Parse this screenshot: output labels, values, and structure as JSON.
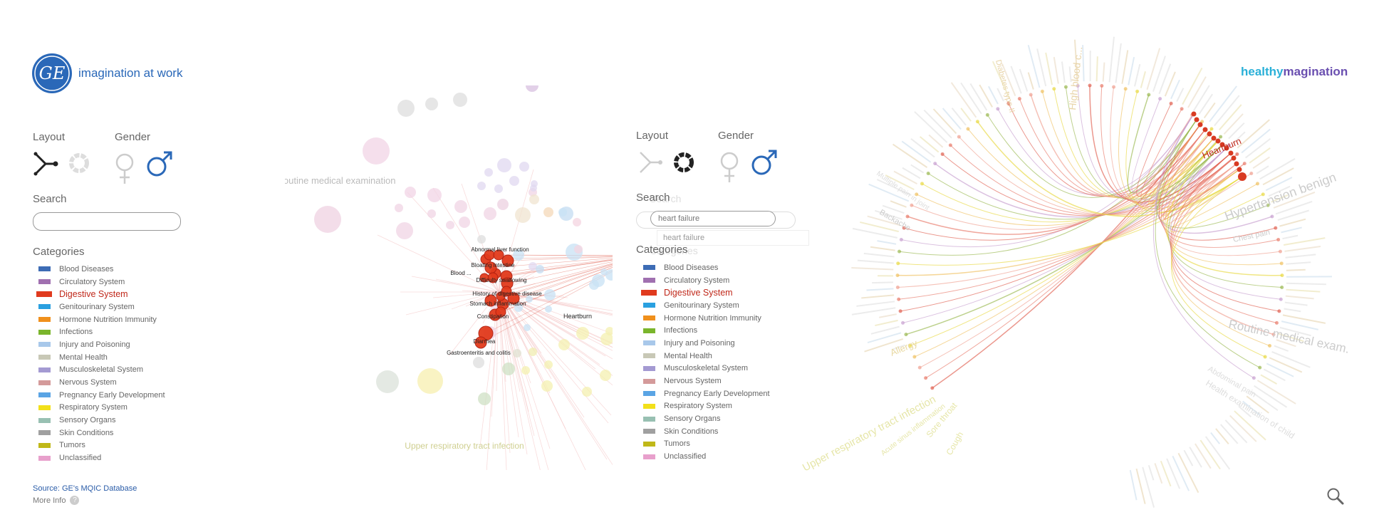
{
  "brand": {
    "tagline": "imagination at work",
    "logo_text": "GE",
    "right_logo_a": "healthy",
    "right_logo_b": "magination"
  },
  "left_panel": {
    "layout_label": "Layout",
    "gender_label": "Gender",
    "search_label": "Search",
    "categories_label": "Categories",
    "search_value": ""
  },
  "right_panel": {
    "layout_label": "Layout",
    "gender_label": "Gender",
    "search_label": "Search",
    "search_ghost": "Search",
    "categories_label": "Categories",
    "categories_ghost": "Categories",
    "search_value": "heart failure",
    "autocomplete": "heart failure"
  },
  "categories": [
    {
      "label": "Blood Diseases",
      "color": "#3d6cb5"
    },
    {
      "label": "Circulatory System",
      "color": "#a070b0"
    },
    {
      "label": "Digestive System",
      "color": "#e03a1e",
      "active": true
    },
    {
      "label": "Genitourinary System",
      "color": "#2aa0e0"
    },
    {
      "label": "Hormone Nutrition Immunity",
      "color": "#f0901c"
    },
    {
      "label": "Infections",
      "color": "#7ab52c"
    },
    {
      "label": "Injury and Poisoning",
      "color": "#a8c8ea"
    },
    {
      "label": "Mental Health",
      "color": "#c8c8b6"
    },
    {
      "label": "Musculoskeletal System",
      "color": "#a49ad2"
    },
    {
      "label": "Nervous System",
      "color": "#d49a9a"
    },
    {
      "label": "Pregnancy  Early Development",
      "color": "#5aa4e4"
    },
    {
      "label": "Respiratory System",
      "color": "#f2e01a"
    },
    {
      "label": "Sensory Organs",
      "color": "#98c0b2"
    },
    {
      "label": "Skin Conditions",
      "color": "#a0a0a0"
    },
    {
      "label": "Tumors",
      "color": "#c0b818"
    },
    {
      "label": "Unclassified",
      "color": "#e8a0cc"
    }
  ],
  "footer": {
    "source": "Source: GE's MQIC Database",
    "more_info": "More Info"
  },
  "network": {
    "labels": {
      "routine": "Routine medical examination",
      "urti": "Upper respiratory tract infection",
      "heartburn": "Heartburn",
      "liver": "Abnormal liver function",
      "intestine": "Bloating intestine",
      "blood": "Blood ...",
      "swallow": "Difficulty swallowing",
      "history": "History of digestive disease",
      "stomach": "Stomach inflammation",
      "constipation": "Constipation",
      "diarrhea": "Diarrhea",
      "gastro": "Gastroenteritis and colitis"
    }
  },
  "radial": {
    "labels": {
      "heartburn": "Heartburn",
      "hypertension": "Hypertension benign",
      "routine": "Routine medical exam.",
      "urti": "Upper respiratory tract infection",
      "high_blood": "High blood c...",
      "allergy": "Allergy",
      "health_exam": "Health examination of child",
      "sore_throat": "Sore throat",
      "cough": "Cough",
      "acute_sinus": "Acute sinus inflammation",
      "chest_pain": "Chest pain",
      "abdominal": "Abdominal pain",
      "backache": "Backache",
      "diabetes": "Diabetes type II",
      "joint_pain": "Multiple pain in joint"
    }
  },
  "colors": {
    "ge_blue": "#2a68b8",
    "digestive": "#e03a1e",
    "male": "#2a68b8",
    "female": "#cccccc"
  },
  "icons": {
    "layout_network": "network-layout-icon",
    "layout_radial": "radial-layout-icon",
    "female": "female-icon",
    "male": "male-icon",
    "magnifier": "magnifier-icon",
    "help": "help-icon"
  }
}
